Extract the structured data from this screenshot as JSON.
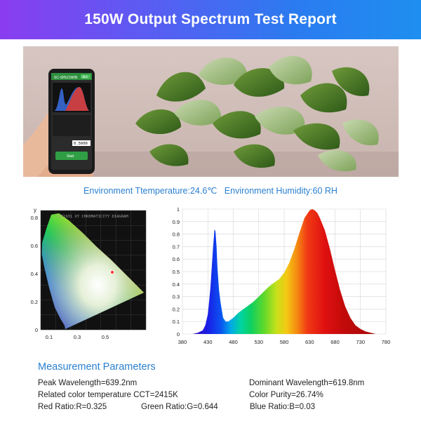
{
  "header": {
    "title": "150W Output Spectrum Test Report"
  },
  "photo": {
    "phone": {
      "screen_label": "SC-SPECIWIN",
      "badge": "测试",
      "reading": "0.5000",
      "button_label": "Start"
    }
  },
  "environment": {
    "temperature_text": "Environment Ttemperature:24.6℃",
    "humidity_text": "Environment Humidity:60 RH"
  },
  "chart_data": [
    {
      "type": "scatter",
      "title": "CIE1931 XY CHROMATICITY DIAGRAM",
      "ylabel": "y",
      "x_ticks": [
        "0.1",
        "0.3",
        "0.5"
      ],
      "y_ticks": [
        "0",
        "0.2",
        "0.4",
        "0.6",
        "0.8"
      ],
      "xlim": [
        0,
        0.75
      ],
      "ylim": [
        0,
        0.85
      ],
      "point": {
        "x": 0.51,
        "y": 0.41
      }
    },
    {
      "type": "area",
      "x_ticks": [
        380,
        430,
        480,
        530,
        580,
        630,
        680,
        730,
        780
      ],
      "y_ticks": [
        "0",
        "0.1",
        "0.2",
        "0.3",
        "0.4",
        "0.5",
        "0.6",
        "0.7",
        "0.8",
        "0.9",
        "1"
      ],
      "xlim": [
        380,
        780
      ],
      "ylim": [
        0,
        1
      ],
      "grid": true,
      "x": [
        380,
        400,
        410,
        420,
        425,
        430,
        435,
        440,
        443,
        445,
        447,
        449,
        452,
        455,
        460,
        465,
        470,
        480,
        490,
        500,
        510,
        520,
        530,
        540,
        550,
        560,
        570,
        580,
        590,
        600,
        610,
        620,
        630,
        635,
        640,
        645,
        650,
        660,
        670,
        680,
        690,
        700,
        710,
        720,
        730,
        740,
        750,
        760,
        770,
        780
      ],
      "values": [
        0,
        0,
        0.01,
        0.03,
        0.07,
        0.16,
        0.37,
        0.68,
        0.84,
        0.82,
        0.7,
        0.52,
        0.35,
        0.25,
        0.13,
        0.1,
        0.1,
        0.13,
        0.17,
        0.2,
        0.23,
        0.26,
        0.3,
        0.34,
        0.38,
        0.41,
        0.44,
        0.49,
        0.57,
        0.68,
        0.81,
        0.93,
        0.99,
        1,
        0.99,
        0.97,
        0.93,
        0.83,
        0.68,
        0.51,
        0.35,
        0.22,
        0.13,
        0.07,
        0.04,
        0.02,
        0.01,
        0,
        0,
        0
      ]
    }
  ],
  "measurement": {
    "title": "Measurement Parameters",
    "peak_wavelength": "Peak Wavelength=639.2nm",
    "dominant_wavelength": "Dominant Wavelength=619.8nm",
    "cct": "Related color temperature CCT=2415K",
    "color_purity": "Color Purity=26.74%",
    "red_ratio": "Red Ratio:R=0.325",
    "green_ratio": "Green Ratio:G=0.644",
    "blue_ratio": "Blue Ratio:B=0.03"
  }
}
